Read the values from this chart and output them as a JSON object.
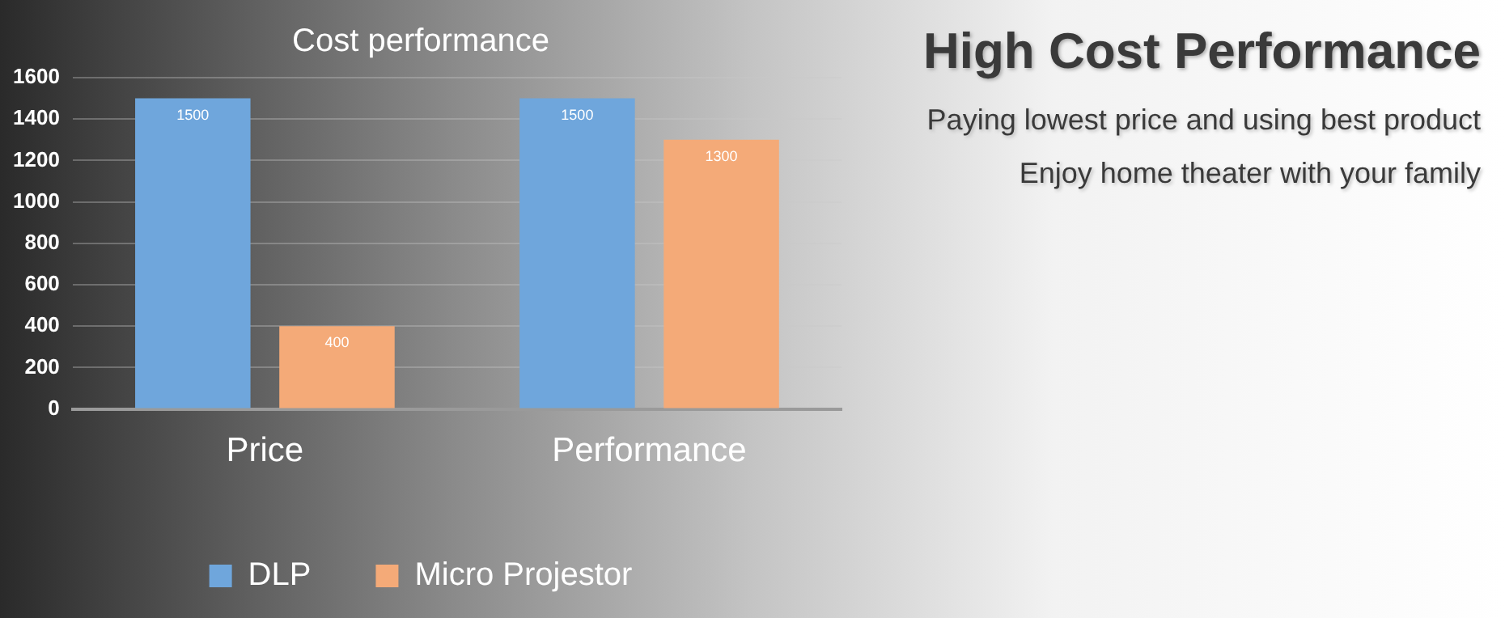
{
  "chart_data": {
    "type": "bar",
    "title": "Cost performance",
    "categories": [
      "Price",
      "Performance"
    ],
    "series": [
      {
        "name": "DLP",
        "color": "#6fa6dc",
        "values": [
          1500,
          1500
        ]
      },
      {
        "name": "Micro Projestor",
        "color": "#f4aa78",
        "values": [
          400,
          1300
        ]
      }
    ],
    "ylim": [
      0,
      1600
    ],
    "yticks": [
      0,
      200,
      400,
      600,
      800,
      1000,
      1200,
      1400,
      1600
    ],
    "grid": "y",
    "legend": "bottom",
    "data_labels": true,
    "annotations": [
      "High Cost Performance",
      "Paying lowest price and using best product",
      "Enjoy home theater with your family"
    ]
  }
}
